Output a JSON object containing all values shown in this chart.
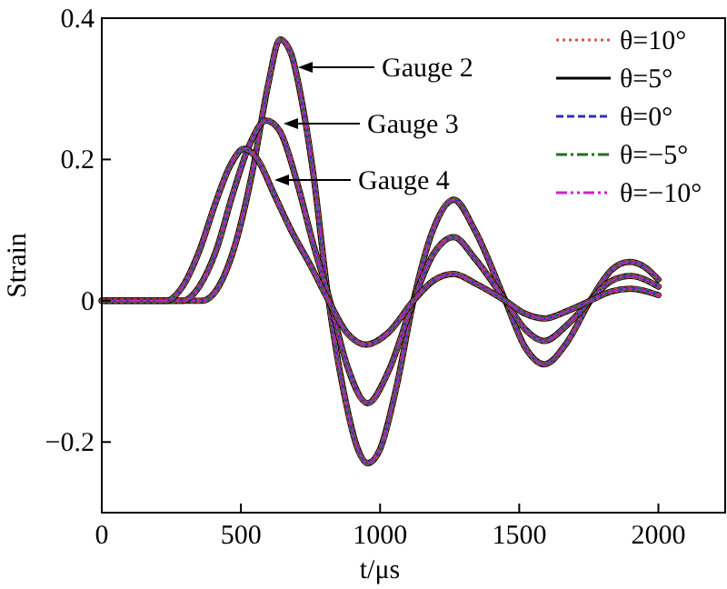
{
  "chart_data": {
    "type": "line",
    "xlabel": "t/μs",
    "ylabel": "Strain",
    "xlim": [
      0,
      2240
    ],
    "ylim": [
      -0.3,
      0.4
    ],
    "xticks": [
      0,
      500,
      1000,
      1500,
      2000
    ],
    "yticks": [
      {
        "value": -0.2,
        "label": "−0.2"
      },
      0,
      0.2,
      0.4
    ],
    "grid": false,
    "legend": "top right",
    "annotations": [
      "Gauge 2",
      "Gauge 3",
      "Gauge 4"
    ],
    "series": [
      {
        "name": "θ=10°",
        "color": "#e05050",
        "line_style": "dotted",
        "x": [
          0,
          360,
          420,
          480,
          540,
          600,
          640,
          680,
          720,
          760,
          815,
          870,
          920,
          955,
          1000,
          1060,
          1120,
          1190,
          1265,
          1340,
          1450,
          1520,
          1590,
          1670,
          1755,
          1830,
          1895,
          1950,
          2000
        ],
        "values": [
          0,
          0,
          0.02,
          0.08,
          0.18,
          0.31,
          0.37,
          0.35,
          0.28,
          0.18,
          0,
          -0.13,
          -0.21,
          -0.23,
          -0.21,
          -0.12,
          0,
          0.1,
          0.143,
          0.1,
          0,
          -0.065,
          -0.09,
          -0.06,
          0,
          0.043,
          0.055,
          0.048,
          0.03
        ]
      },
      {
        "name": "θ=5°",
        "color": "#000000",
        "line_style": "solid",
        "x": [
          0,
          360,
          420,
          480,
          540,
          600,
          640,
          680,
          720,
          760,
          815,
          870,
          920,
          955,
          1000,
          1060,
          1120,
          1190,
          1265,
          1340,
          1450,
          1520,
          1590,
          1670,
          1755,
          1830,
          1895,
          1950,
          2000
        ],
        "values": [
          0,
          0,
          0.02,
          0.08,
          0.18,
          0.31,
          0.37,
          0.35,
          0.28,
          0.18,
          0,
          -0.13,
          -0.21,
          -0.23,
          -0.21,
          -0.12,
          0,
          0.1,
          0.143,
          0.1,
          0,
          -0.065,
          -0.09,
          -0.06,
          0,
          0.043,
          0.055,
          0.048,
          0.03
        ]
      },
      {
        "name": "θ=0°",
        "color": "#3030c0",
        "line_style": "dashed",
        "x": [
          0,
          360,
          420,
          480,
          540,
          600,
          640,
          680,
          720,
          760,
          815,
          870,
          920,
          955,
          1000,
          1060,
          1120,
          1190,
          1265,
          1340,
          1450,
          1520,
          1590,
          1670,
          1755,
          1830,
          1895,
          1950,
          2000
        ],
        "values": [
          0,
          0,
          0.02,
          0.08,
          0.18,
          0.31,
          0.37,
          0.35,
          0.28,
          0.18,
          0,
          -0.13,
          -0.21,
          -0.23,
          -0.21,
          -0.12,
          0,
          0.1,
          0.143,
          0.1,
          0,
          -0.065,
          -0.09,
          -0.06,
          0,
          0.043,
          0.055,
          0.048,
          0.03
        ]
      },
      {
        "name": "θ=−5°",
        "color": "#207020",
        "line_style": "dashdot",
        "x": [
          0,
          360,
          420,
          480,
          540,
          600,
          640,
          680,
          720,
          760,
          815,
          870,
          920,
          955,
          1000,
          1060,
          1120,
          1190,
          1265,
          1340,
          1450,
          1520,
          1590,
          1670,
          1755,
          1830,
          1895,
          1950,
          2000
        ],
        "values": [
          0,
          0,
          0.02,
          0.08,
          0.18,
          0.31,
          0.37,
          0.35,
          0.28,
          0.18,
          0,
          -0.13,
          -0.21,
          -0.23,
          -0.21,
          -0.12,
          0,
          0.1,
          0.143,
          0.1,
          0,
          -0.065,
          -0.09,
          -0.06,
          0,
          0.043,
          0.055,
          0.048,
          0.03
        ]
      },
      {
        "name": "θ=−10°",
        "color": "#d020d0",
        "line_style": "dashdotdot",
        "x": [
          0,
          360,
          420,
          480,
          540,
          600,
          640,
          680,
          720,
          760,
          815,
          870,
          920,
          955,
          1000,
          1060,
          1120,
          1190,
          1265,
          1340,
          1450,
          1520,
          1590,
          1670,
          1755,
          1830,
          1895,
          1950,
          2000
        ],
        "values": [
          0,
          0,
          0.02,
          0.08,
          0.18,
          0.31,
          0.37,
          0.35,
          0.28,
          0.18,
          0,
          -0.13,
          -0.21,
          -0.23,
          -0.21,
          -0.12,
          0,
          0.1,
          0.143,
          0.1,
          0,
          -0.065,
          -0.09,
          -0.06,
          0,
          0.043,
          0.055,
          0.048,
          0.03
        ]
      },
      {
        "color": "#e05050",
        "line_style": "dotted",
        "x": [
          0,
          290,
          350,
          410,
          470,
          530,
          590,
          640,
          700,
          760,
          820,
          880,
          955,
          1030,
          1120,
          1190,
          1265,
          1340,
          1450,
          1520,
          1590,
          1670,
          1755,
          1830,
          1900,
          2000
        ],
        "values": [
          0,
          0,
          0.02,
          0.07,
          0.15,
          0.22,
          0.255,
          0.24,
          0.17,
          0.08,
          0,
          -0.09,
          -0.145,
          -0.1,
          0,
          0.065,
          0.09,
          0.06,
          0,
          -0.04,
          -0.057,
          -0.035,
          0,
          0.028,
          0.035,
          0.02
        ]
      },
      {
        "color": "#000000",
        "line_style": "solid",
        "x": [
          0,
          290,
          350,
          410,
          470,
          530,
          590,
          640,
          700,
          760,
          820,
          880,
          955,
          1030,
          1120,
          1190,
          1265,
          1340,
          1450,
          1520,
          1590,
          1670,
          1755,
          1830,
          1900,
          2000
        ],
        "values": [
          0,
          0,
          0.02,
          0.07,
          0.15,
          0.22,
          0.255,
          0.24,
          0.17,
          0.08,
          0,
          -0.09,
          -0.145,
          -0.1,
          0,
          0.065,
          0.09,
          0.06,
          0,
          -0.04,
          -0.057,
          -0.035,
          0,
          0.028,
          0.035,
          0.02
        ]
      },
      {
        "color": "#3030c0",
        "line_style": "dashed",
        "x": [
          0,
          290,
          350,
          410,
          470,
          530,
          590,
          640,
          700,
          760,
          820,
          880,
          955,
          1030,
          1120,
          1190,
          1265,
          1340,
          1450,
          1520,
          1590,
          1670,
          1755,
          1830,
          1900,
          2000
        ],
        "values": [
          0,
          0,
          0.02,
          0.07,
          0.15,
          0.22,
          0.255,
          0.24,
          0.17,
          0.08,
          0,
          -0.09,
          -0.145,
          -0.1,
          0,
          0.065,
          0.09,
          0.06,
          0,
          -0.04,
          -0.057,
          -0.035,
          0,
          0.028,
          0.035,
          0.02
        ]
      },
      {
        "color": "#207020",
        "line_style": "dashdot",
        "x": [
          0,
          290,
          350,
          410,
          470,
          530,
          590,
          640,
          700,
          760,
          820,
          880,
          955,
          1030,
          1120,
          1190,
          1265,
          1340,
          1450,
          1520,
          1590,
          1670,
          1755,
          1830,
          1900,
          2000
        ],
        "values": [
          0,
          0,
          0.02,
          0.07,
          0.15,
          0.22,
          0.255,
          0.24,
          0.17,
          0.08,
          0,
          -0.09,
          -0.145,
          -0.1,
          0,
          0.065,
          0.09,
          0.06,
          0,
          -0.04,
          -0.057,
          -0.035,
          0,
          0.028,
          0.035,
          0.02
        ]
      },
      {
        "color": "#d020d0",
        "line_style": "dashdotdot",
        "x": [
          0,
          290,
          350,
          410,
          470,
          530,
          590,
          640,
          700,
          760,
          820,
          880,
          955,
          1030,
          1120,
          1190,
          1265,
          1340,
          1450,
          1520,
          1590,
          1670,
          1755,
          1830,
          1900,
          2000
        ],
        "values": [
          0,
          0,
          0.02,
          0.07,
          0.15,
          0.22,
          0.255,
          0.24,
          0.17,
          0.08,
          0,
          -0.09,
          -0.145,
          -0.1,
          0,
          0.065,
          0.09,
          0.06,
          0,
          -0.04,
          -0.057,
          -0.035,
          0,
          0.028,
          0.035,
          0.02
        ]
      },
      {
        "color": "#e05050",
        "line_style": "dotted",
        "x": [
          0,
          230,
          290,
          350,
          410,
          460,
          510,
          560,
          620,
          680,
          750,
          815,
          880,
          950,
          1030,
          1120,
          1190,
          1265,
          1340,
          1450,
          1520,
          1590,
          1670,
          1755,
          1830,
          1900,
          2000
        ],
        "values": [
          0,
          0,
          0.02,
          0.07,
          0.14,
          0.19,
          0.215,
          0.2,
          0.15,
          0.1,
          0.05,
          0,
          -0.045,
          -0.062,
          -0.045,
          0,
          0.028,
          0.038,
          0.025,
          0,
          -0.018,
          -0.025,
          -0.015,
          0,
          0.013,
          0.017,
          0.008
        ]
      },
      {
        "color": "#000000",
        "line_style": "solid",
        "x": [
          0,
          230,
          290,
          350,
          410,
          460,
          510,
          560,
          620,
          680,
          750,
          815,
          880,
          950,
          1030,
          1120,
          1190,
          1265,
          1340,
          1450,
          1520,
          1590,
          1670,
          1755,
          1830,
          1900,
          2000
        ],
        "values": [
          0,
          0,
          0.02,
          0.07,
          0.14,
          0.19,
          0.215,
          0.2,
          0.15,
          0.1,
          0.05,
          0,
          -0.045,
          -0.062,
          -0.045,
          0,
          0.028,
          0.038,
          0.025,
          0,
          -0.018,
          -0.025,
          -0.015,
          0,
          0.013,
          0.017,
          0.008
        ]
      },
      {
        "color": "#3030c0",
        "line_style": "dashed",
        "x": [
          0,
          230,
          290,
          350,
          410,
          460,
          510,
          560,
          620,
          680,
          750,
          815,
          880,
          950,
          1030,
          1120,
          1190,
          1265,
          1340,
          1450,
          1520,
          1590,
          1670,
          1755,
          1830,
          1900,
          2000
        ],
        "values": [
          0,
          0,
          0.02,
          0.07,
          0.14,
          0.19,
          0.215,
          0.2,
          0.15,
          0.1,
          0.05,
          0,
          -0.045,
          -0.062,
          -0.045,
          0,
          0.028,
          0.038,
          0.025,
          0,
          -0.018,
          -0.025,
          -0.015,
          0,
          0.013,
          0.017,
          0.008
        ]
      },
      {
        "color": "#207020",
        "line_style": "dashdot",
        "x": [
          0,
          230,
          290,
          350,
          410,
          460,
          510,
          560,
          620,
          680,
          750,
          815,
          880,
          950,
          1030,
          1120,
          1190,
          1265,
          1340,
          1450,
          1520,
          1590,
          1670,
          1755,
          1830,
          1900,
          2000
        ],
        "values": [
          0,
          0,
          0.02,
          0.07,
          0.14,
          0.19,
          0.215,
          0.2,
          0.15,
          0.1,
          0.05,
          0,
          -0.045,
          -0.062,
          -0.045,
          0,
          0.028,
          0.038,
          0.025,
          0,
          -0.018,
          -0.025,
          -0.015,
          0,
          0.013,
          0.017,
          0.008
        ]
      },
      {
        "color": "#d020d0",
        "line_style": "dashdotdot",
        "x": [
          0,
          230,
          290,
          350,
          410,
          460,
          510,
          560,
          620,
          680,
          750,
          815,
          880,
          950,
          1030,
          1120,
          1190,
          1265,
          1340,
          1450,
          1520,
          1590,
          1670,
          1755,
          1830,
          1900,
          2000
        ],
        "values": [
          0,
          0,
          0.02,
          0.07,
          0.14,
          0.19,
          0.215,
          0.2,
          0.15,
          0.1,
          0.05,
          0,
          -0.045,
          -0.062,
          -0.045,
          0,
          0.028,
          0.038,
          0.025,
          0,
          -0.018,
          -0.025,
          -0.015,
          0,
          0.013,
          0.017,
          0.008
        ]
      }
    ]
  }
}
